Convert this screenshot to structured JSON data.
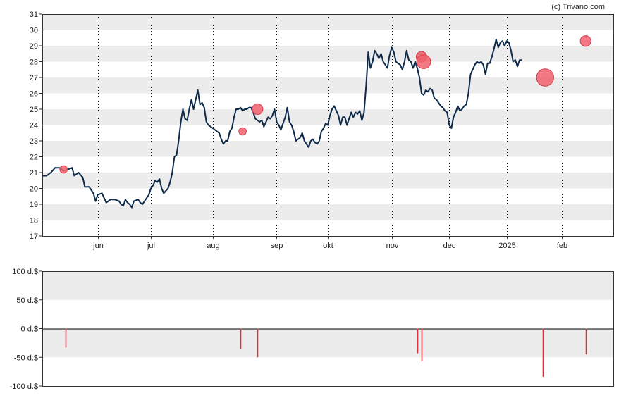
{
  "watermark": "(c) Trivano.com",
  "colors": {
    "line": "#0d2a4a",
    "marker": "#f0616d",
    "bar": "#e0303f",
    "band": "#ececec"
  },
  "chart_data": [
    {
      "type": "line",
      "title": "",
      "ylim": [
        17,
        31
      ],
      "yticks": [
        17,
        18,
        19,
        20,
        21,
        22,
        23,
        24,
        25,
        26,
        27,
        28,
        29,
        30,
        31
      ],
      "x_domain": [
        0,
        268
      ],
      "xticks": [
        {
          "x": 26,
          "label": "jun"
        },
        {
          "x": 51,
          "label": "jul"
        },
        {
          "x": 80,
          "label": "aug"
        },
        {
          "x": 110,
          "label": "sep"
        },
        {
          "x": 134,
          "label": "okt"
        },
        {
          "x": 164,
          "label": "nov"
        },
        {
          "x": 191,
          "label": "dec"
        },
        {
          "x": 218,
          "label": "2025"
        },
        {
          "x": 244,
          "label": "feb"
        }
      ],
      "grid": "alternating horizontal bands, dotted vertical lines at month ticks",
      "series": [
        {
          "points": [
            [
              0,
              20.8
            ],
            [
              2,
              20.8
            ],
            [
              4,
              21.0
            ],
            [
              6,
              21.3
            ],
            [
              8,
              21.3
            ],
            [
              10,
              21.1
            ],
            [
              12,
              21.2
            ],
            [
              14,
              21.3
            ],
            [
              15,
              20.8
            ],
            [
              17,
              21.0
            ],
            [
              19,
              20.7
            ],
            [
              20,
              20.1
            ],
            [
              22,
              20.1
            ],
            [
              23,
              19.9
            ],
            [
              24,
              19.7
            ],
            [
              25,
              19.2
            ],
            [
              26,
              19.6
            ],
            [
              28,
              19.7
            ],
            [
              30,
              19.1
            ],
            [
              32,
              19.3
            ],
            [
              34,
              19.3
            ],
            [
              36,
              19.2
            ],
            [
              37,
              19.0
            ],
            [
              38,
              18.9
            ],
            [
              39,
              19.3
            ],
            [
              40,
              19.1
            ],
            [
              41,
              19.0
            ],
            [
              42,
              18.8
            ],
            [
              43,
              19.2
            ],
            [
              45,
              19.3
            ],
            [
              46,
              19.1
            ],
            [
              47,
              19.0
            ],
            [
              48,
              19.2
            ],
            [
              50,
              19.6
            ],
            [
              51,
              20.0
            ],
            [
              52,
              20.2
            ],
            [
              53,
              20.5
            ],
            [
              54,
              20.4
            ],
            [
              55,
              20.6
            ],
            [
              56,
              20.0
            ],
            [
              57,
              19.7
            ],
            [
              59,
              20.0
            ],
            [
              60,
              20.4
            ],
            [
              61,
              21.0
            ],
            [
              62,
              22.0
            ],
            [
              63,
              22.1
            ],
            [
              64,
              23.0
            ],
            [
              65,
              24.2
            ],
            [
              66,
              25.0
            ],
            [
              67,
              24.4
            ],
            [
              68,
              24.3
            ],
            [
              69,
              25.0
            ],
            [
              70,
              25.6
            ],
            [
              71,
              25.0
            ],
            [
              72,
              25.6
            ],
            [
              73,
              26.2
            ],
            [
              74,
              25.3
            ],
            [
              75,
              25.4
            ],
            [
              76,
              25.1
            ],
            [
              77,
              24.2
            ],
            [
              78,
              24.0
            ],
            [
              80,
              23.8
            ],
            [
              82,
              23.6
            ],
            [
              83,
              23.5
            ],
            [
              84,
              23.1
            ],
            [
              85,
              22.8
            ],
            [
              86,
              23.0
            ],
            [
              87,
              23.0
            ],
            [
              88,
              23.6
            ],
            [
              89,
              23.8
            ],
            [
              90,
              24.5
            ],
            [
              91,
              25.0
            ],
            [
              92,
              25.0
            ],
            [
              93,
              25.1
            ],
            [
              94,
              24.9
            ],
            [
              95,
              25.0
            ],
            [
              96,
              25.0
            ],
            [
              97,
              25.1
            ],
            [
              98,
              25.1
            ],
            [
              99,
              24.8
            ],
            [
              100,
              24.4
            ],
            [
              102,
              24.2
            ],
            [
              103,
              24.3
            ],
            [
              104,
              23.9
            ],
            [
              105,
              24.2
            ],
            [
              106,
              24.5
            ],
            [
              107,
              24.4
            ],
            [
              108,
              24.6
            ],
            [
              109,
              25.0
            ],
            [
              110,
              24.2
            ],
            [
              111,
              24.0
            ],
            [
              112,
              23.7
            ],
            [
              113,
              24.1
            ],
            [
              114,
              24.5
            ],
            [
              115,
              25.1
            ],
            [
              116,
              24.2
            ],
            [
              117,
              24.0
            ],
            [
              118,
              23.6
            ],
            [
              119,
              23.0
            ],
            [
              120,
              23.1
            ],
            [
              121,
              23.2
            ],
            [
              122,
              23.5
            ],
            [
              123,
              23.0
            ],
            [
              124,
              22.8
            ],
            [
              125,
              22.6
            ],
            [
              126,
              23.0
            ],
            [
              127,
              23.1
            ],
            [
              128,
              22.9
            ],
            [
              129,
              22.8
            ],
            [
              130,
              23.0
            ],
            [
              131,
              23.6
            ],
            [
              132,
              23.8
            ],
            [
              133,
              24.1
            ],
            [
              134,
              24.0
            ],
            [
              135,
              24.6
            ],
            [
              136,
              25.0
            ],
            [
              137,
              25.2
            ],
            [
              138,
              24.9
            ],
            [
              139,
              24.6
            ],
            [
              140,
              24.0
            ],
            [
              141,
              24.5
            ],
            [
              142,
              24.5
            ],
            [
              143,
              24.0
            ],
            [
              144,
              24.4
            ],
            [
              145,
              24.8
            ],
            [
              146,
              24.5
            ],
            [
              147,
              24.8
            ],
            [
              148,
              24.7
            ],
            [
              149,
              24.9
            ],
            [
              150,
              24.3
            ],
            [
              151,
              24.8
            ],
            [
              152,
              26.5
            ],
            [
              153,
              28.6
            ],
            [
              154,
              27.6
            ],
            [
              155,
              28.0
            ],
            [
              156,
              28.7
            ],
            [
              157,
              28.5
            ],
            [
              158,
              28.2
            ],
            [
              159,
              28.5
            ],
            [
              160,
              28.0
            ],
            [
              161,
              27.8
            ],
            [
              162,
              27.6
            ],
            [
              163,
              28.4
            ],
            [
              164,
              28.9
            ],
            [
              165,
              28.6
            ],
            [
              166,
              28.0
            ],
            [
              167,
              27.9
            ],
            [
              168,
              27.8
            ],
            [
              169,
              27.5
            ],
            [
              170,
              28.0
            ],
            [
              171,
              28.7
            ],
            [
              172,
              28.1
            ],
            [
              173,
              28.0
            ],
            [
              174,
              27.6
            ],
            [
              175,
              28.0
            ],
            [
              176,
              27.6
            ],
            [
              177,
              27.0
            ],
            [
              178,
              26.0
            ],
            [
              179,
              25.9
            ],
            [
              180,
              26.2
            ],
            [
              181,
              26.1
            ],
            [
              182,
              26.3
            ],
            [
              183,
              26.2
            ],
            [
              184,
              25.7
            ],
            [
              185,
              25.6
            ],
            [
              186,
              25.4
            ],
            [
              187,
              25.2
            ],
            [
              188,
              25.1
            ],
            [
              189,
              24.9
            ],
            [
              190,
              24.8
            ],
            [
              191,
              24.0
            ],
            [
              192,
              23.8
            ],
            [
              193,
              24.5
            ],
            [
              194,
              24.8
            ],
            [
              195,
              25.2
            ],
            [
              196,
              24.9
            ],
            [
              197,
              25.0
            ],
            [
              198,
              25.2
            ],
            [
              199,
              25.3
            ],
            [
              200,
              26.0
            ],
            [
              201,
              27.2
            ],
            [
              202,
              27.5
            ],
            [
              203,
              27.8
            ],
            [
              204,
              28.0
            ],
            [
              205,
              27.9
            ],
            [
              206,
              28.0
            ],
            [
              207,
              27.8
            ],
            [
              208,
              27.2
            ],
            [
              209,
              27.9
            ],
            [
              210,
              27.9
            ],
            [
              211,
              28.3
            ],
            [
              212,
              28.8
            ],
            [
              213,
              29.4
            ],
            [
              214,
              28.9
            ],
            [
              215,
              29.2
            ],
            [
              216,
              29.3
            ],
            [
              217,
              29.0
            ],
            [
              218,
              29.3
            ],
            [
              219,
              29.2
            ],
            [
              220,
              28.7
            ],
            [
              221,
              28.0
            ],
            [
              222,
              28.1
            ],
            [
              223,
              27.7
            ],
            [
              224,
              28.1
            ],
            [
              225,
              28.1
            ]
          ]
        }
      ],
      "markers": [
        {
          "x": 10,
          "y": 21.2,
          "size": 1
        },
        {
          "x": 94,
          "y": 23.6,
          "size": 1
        },
        {
          "x": 101,
          "y": 25.0,
          "size": 2
        },
        {
          "x": 178,
          "y": 28.3,
          "size": 2
        },
        {
          "x": 179,
          "y": 28.0,
          "size": 3
        },
        {
          "x": 236,
          "y": 27.0,
          "size": 4
        },
        {
          "x": 255,
          "y": 29.3,
          "size": 2
        }
      ]
    },
    {
      "type": "bar",
      "title": "",
      "ylim": [
        -100,
        100
      ],
      "yticks": [
        {
          "value": 100,
          "label": "100 d.$"
        },
        {
          "value": 50,
          "label": "50 d.$"
        },
        {
          "value": 0,
          "label": "0 d.$"
        },
        {
          "value": -50,
          "label": "-50 d.$"
        },
        {
          "value": -100,
          "label": "-100 d.$"
        }
      ],
      "x_domain": [
        0,
        268
      ],
      "bars": [
        {
          "x": 11,
          "value": -33
        },
        {
          "x": 93,
          "value": -36
        },
        {
          "x": 101,
          "value": -50
        },
        {
          "x": 176,
          "value": -43
        },
        {
          "x": 178,
          "value": -57
        },
        {
          "x": 235,
          "value": -84
        },
        {
          "x": 255,
          "value": -45
        }
      ]
    }
  ]
}
